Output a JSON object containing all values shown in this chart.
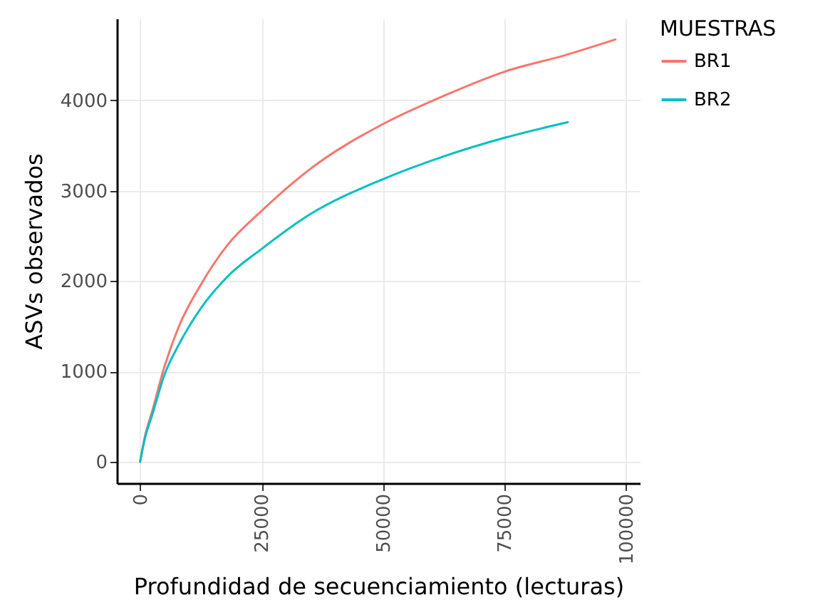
{
  "chart_data": {
    "type": "line",
    "xlabel": "Profundidad de secuenciamiento (lecturas)",
    "ylabel": "ASVs observados",
    "legend_title": "MUESTRAS",
    "legend": "right",
    "grid": true,
    "xlim": [
      -4780,
      102800
    ],
    "ylim": [
      -237,
      4905
    ],
    "xticks": [
      0,
      25000,
      50000,
      75000,
      100000
    ],
    "yticks": [
      0,
      1000,
      2000,
      3000,
      4000
    ],
    "series": [
      {
        "name": "BR1",
        "color": "#f8766d",
        "x": [
          0,
          1000,
          2500,
          5000,
          8000,
          12500,
          18000,
          25000,
          35000,
          50000,
          62500,
          75000,
          87500,
          97800
        ],
        "values": [
          0,
          280,
          560,
          1050,
          1500,
          1960,
          2400,
          2776,
          3240,
          3738,
          4050,
          4317,
          4500,
          4673
        ]
      },
      {
        "name": "BR2",
        "color": "#00bfc4",
        "x": [
          0,
          1000,
          2500,
          5000,
          8000,
          12500,
          18000,
          25000,
          35000,
          50000,
          62500,
          75000,
          88000
        ],
        "values": [
          0,
          260,
          520,
          960,
          1300,
          1698,
          2050,
          2355,
          2740,
          3128,
          3380,
          3586,
          3758
        ]
      }
    ]
  }
}
